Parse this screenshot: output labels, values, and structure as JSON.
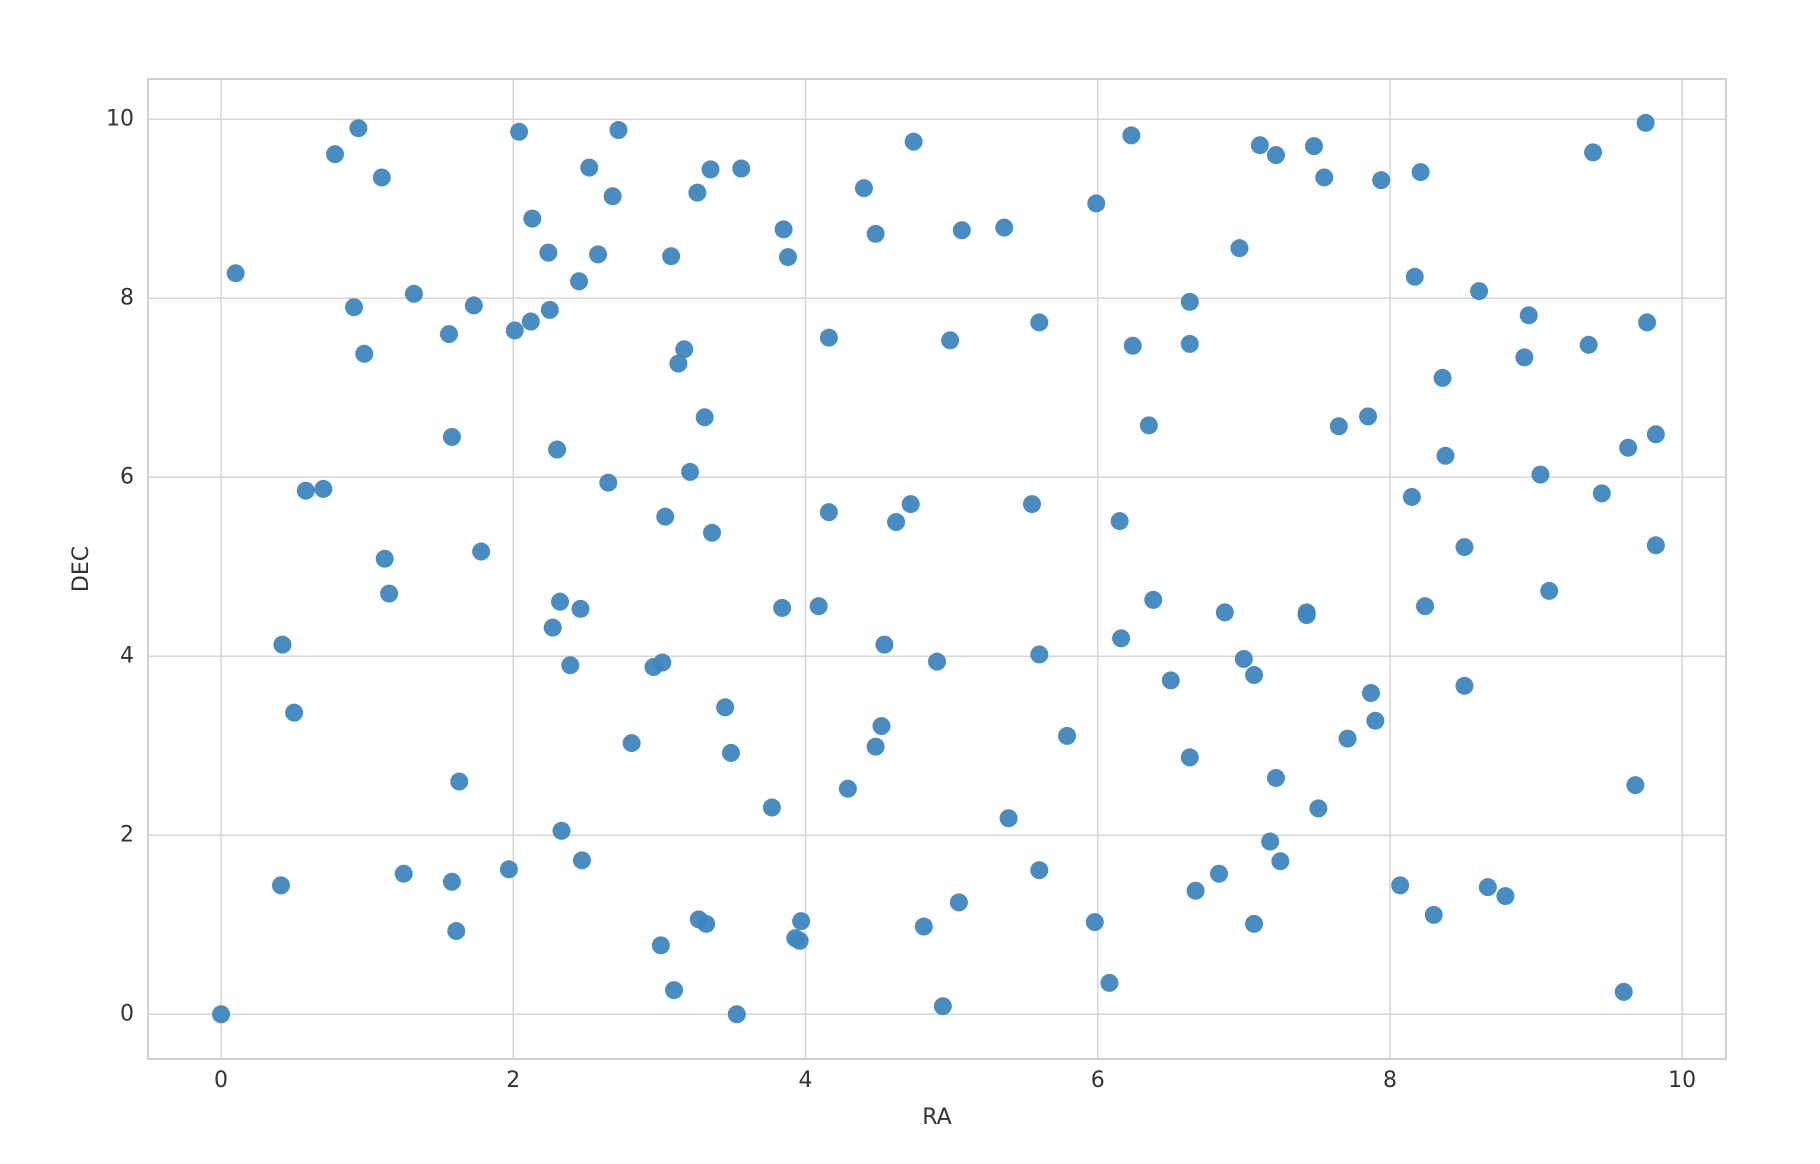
{
  "chart_data": {
    "type": "scatter",
    "xlabel": "RA",
    "ylabel": "DEC",
    "x": [
      0,
      0.1,
      0.94,
      0.78,
      1.1,
      0.91,
      0.98,
      1.32,
      1.56,
      1.73,
      1.58,
      0.58,
      0.7,
      1.12,
      1.15,
      1.78,
      0.42,
      0.5,
      1.63,
      0.41,
      1.25,
      1.58,
      1.61,
      1.97,
      2.04,
      2.13,
      2.24,
      2.25,
      2.12,
      2.01,
      2.45,
      2.52,
      2.58,
      2.68,
      2.72,
      2.3,
      2.65,
      2.32,
      2.46,
      2.27,
      2.39,
      2.81,
      2.33,
      2.47,
      3.08,
      3.26,
      3.35,
      3.56,
      3.17,
      3.13,
      3.31,
      3.21,
      3.04,
      3.36,
      2.96,
      3.02,
      3.45,
      3.49,
      3.27,
      3.32,
      3.01,
      3.1,
      3.53,
      3.85,
      3.88,
      3.77,
      3.84,
      4.09,
      3.97,
      3.93,
      3.96,
      4.16,
      4.16,
      4.4,
      4.48,
      4.74,
      4.62,
      4.72,
      4.54,
      4.52,
      4.48,
      4.29,
      4.9,
      4.81,
      4.94,
      5.05,
      5.07,
      4.99,
      5.36,
      5.6,
      5.55,
      5.6,
      5.79,
      5.39,
      5.6,
      5.99,
      6.23,
      6.24,
      6.35,
      6.15,
      6.38,
      6.16,
      6.5,
      6.63,
      6.67,
      5.98,
      6.08,
      6.63,
      6.63,
      6.97,
      7.11,
      7.22,
      7.48,
      7.55,
      7.94,
      8.21,
      8.17,
      6.87,
      7.0,
      7.07,
      7.43,
      7.43,
      7.65,
      7.85,
      8.15,
      8.24,
      7.87,
      7.9,
      7.71,
      7.22,
      7.51,
      7.18,
      7.25,
      6.83,
      7.07,
      8.07,
      8.3,
      8.61,
      8.36,
      8.38,
      8.51,
      8.51,
      8.67,
      8.79,
      8.95,
      8.92,
      9.03,
      9.09,
      9.39,
      9.75,
      9.36,
      9.76,
      9.63,
      9.82,
      9.45,
      9.82,
      9.68,
      9.6
    ],
    "values": [
      0,
      8.28,
      9.9,
      9.61,
      9.35,
      7.9,
      7.38,
      8.05,
      7.6,
      7.92,
      6.45,
      5.85,
      5.87,
      5.09,
      4.7,
      5.17,
      4.13,
      3.37,
      2.6,
      1.44,
      1.57,
      1.48,
      0.93,
      1.62,
      9.86,
      8.89,
      8.51,
      7.87,
      7.74,
      7.64,
      8.19,
      9.46,
      8.49,
      9.14,
      9.88,
      6.31,
      5.94,
      4.61,
      4.53,
      4.32,
      3.9,
      3.03,
      2.05,
      1.72,
      8.47,
      9.18,
      9.44,
      9.45,
      7.43,
      7.27,
      6.67,
      6.06,
      5.56,
      5.38,
      3.88,
      3.93,
      3.43,
      2.92,
      1.06,
      1.01,
      0.77,
      0.27,
      0.0,
      8.77,
      8.46,
      2.31,
      4.54,
      4.56,
      1.04,
      0.85,
      0.82,
      7.56,
      5.61,
      9.23,
      8.72,
      9.75,
      5.5,
      5.7,
      4.13,
      3.22,
      2.99,
      2.52,
      3.94,
      0.98,
      0.09,
      1.25,
      8.76,
      7.53,
      8.79,
      7.73,
      5.7,
      4.02,
      3.11,
      2.19,
      1.61,
      9.06,
      9.82,
      7.47,
      6.58,
      5.51,
      4.63,
      4.2,
      3.73,
      2.87,
      1.38,
      1.03,
      0.35,
      7.96,
      7.49,
      8.56,
      9.71,
      9.6,
      9.7,
      9.35,
      9.32,
      9.41,
      8.24,
      4.49,
      3.97,
      3.79,
      4.49,
      4.46,
      6.57,
      6.68,
      5.78,
      4.56,
      3.59,
      3.28,
      3.08,
      2.64,
      2.3,
      1.93,
      1.71,
      1.57,
      1.01,
      1.44,
      1.11,
      8.08,
      7.11,
      6.24,
      5.22,
      3.67,
      1.42,
      1.32,
      7.81,
      7.34,
      6.03,
      4.73,
      9.63,
      9.96,
      7.48,
      7.73,
      6.33,
      6.48,
      5.82,
      5.24,
      2.56,
      0.25
    ],
    "color": "#3f86bf",
    "xlim": [
      -0.5,
      10.3
    ],
    "ylim": [
      -0.5,
      10.45
    ],
    "xticks": [
      0,
      2,
      4,
      6,
      8,
      10
    ],
    "yticks": [
      0,
      2,
      4,
      6,
      8,
      10
    ],
    "grid": true
  }
}
